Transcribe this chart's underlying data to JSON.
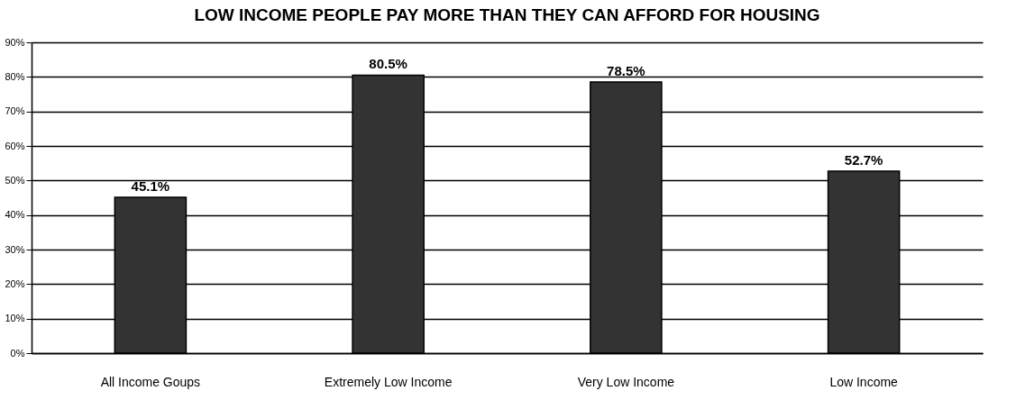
{
  "chart_data": {
    "type": "bar",
    "title": "LOW INCOME PEOPLE PAY MORE THAN THEY CAN AFFORD FOR HOUSING",
    "categories": [
      "All Income Goups",
      "Extremely Low Income",
      "Very Low Income",
      "Low Income"
    ],
    "values": [
      45.1,
      80.5,
      78.5,
      52.7
    ],
    "value_labels": [
      "45.1%",
      "80.5%",
      "78.5%",
      "52.7%"
    ],
    "color": "#333333",
    "ylim": [
      0,
      90
    ],
    "yticks": [
      {
        "value": 0,
        "label": "0%"
      },
      {
        "value": 10,
        "label": "10%"
      },
      {
        "value": 20,
        "label": "20%"
      },
      {
        "value": 30,
        "label": "30%"
      },
      {
        "value": 40,
        "label": "40%"
      },
      {
        "value": 50,
        "label": "50%"
      },
      {
        "value": 60,
        "label": "60%"
      },
      {
        "value": 70,
        "label": "70%"
      },
      {
        "value": 80,
        "label": "80%"
      },
      {
        "value": 90,
        "label": "90%"
      }
    ],
    "grid": "y"
  }
}
